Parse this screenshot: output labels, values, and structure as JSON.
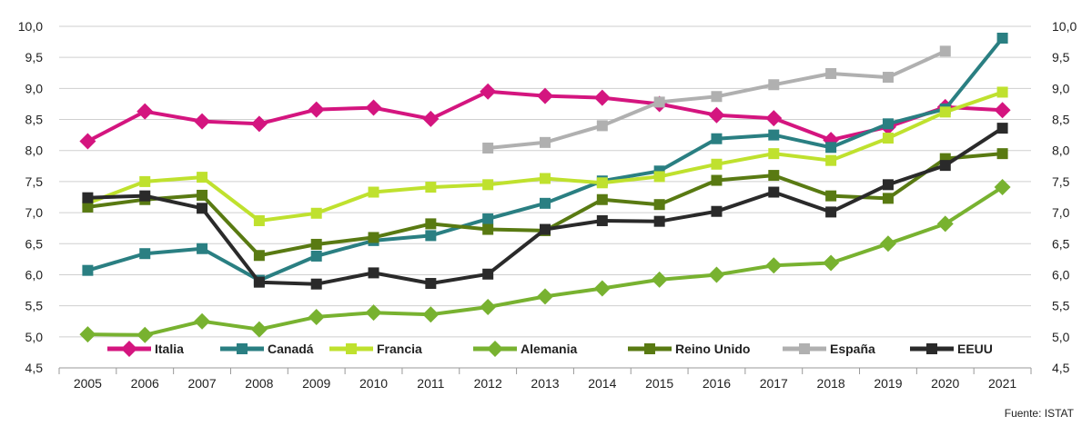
{
  "chart_data": {
    "type": "line",
    "x": [
      "2005",
      "2006",
      "2007",
      "2008",
      "2009",
      "2010",
      "2011",
      "2012",
      "2013",
      "2014",
      "2015",
      "2016",
      "2017",
      "2018",
      "2019",
      "2020",
      "2021"
    ],
    "ylim": [
      4.5,
      10.0
    ],
    "yticks": [
      "4,5",
      "5,0",
      "5,5",
      "6,0",
      "6,5",
      "7,0",
      "7,5",
      "8,0",
      "8,5",
      "9,0",
      "9,5",
      "10,0"
    ],
    "grid": true,
    "legend_position": "bottom-inside",
    "series": [
      {
        "name": "Italia",
        "color": "#D4157F",
        "marker": "diamond",
        "values": [
          8.15,
          8.63,
          8.47,
          8.43,
          8.66,
          8.69,
          8.51,
          8.95,
          8.88,
          8.85,
          8.75,
          8.57,
          8.52,
          8.17,
          8.38,
          8.7,
          8.65
        ]
      },
      {
        "name": "Canadá",
        "color": "#2A7F82",
        "marker": "square",
        "values": [
          6.07,
          6.34,
          6.42,
          5.91,
          6.3,
          6.55,
          6.63,
          6.9,
          7.15,
          7.51,
          7.67,
          8.19,
          8.25,
          8.05,
          8.43,
          8.67,
          9.81
        ]
      },
      {
        "name": "Francia",
        "color": "#BFE12E",
        "marker": "square",
        "values": [
          7.15,
          7.5,
          7.57,
          6.87,
          6.99,
          7.33,
          7.41,
          7.45,
          7.55,
          7.48,
          7.58,
          7.78,
          7.95,
          7.84,
          8.2,
          8.62,
          8.94
        ]
      },
      {
        "name": "Alemania",
        "color": "#78B230",
        "marker": "diamond",
        "values": [
          5.04,
          5.03,
          5.25,
          5.12,
          5.32,
          5.39,
          5.36,
          5.48,
          5.65,
          5.78,
          5.92,
          6.0,
          6.15,
          6.19,
          6.5,
          6.82,
          7.41
        ]
      },
      {
        "name": "Reino Unido",
        "color": "#597A12",
        "marker": "square",
        "values": [
          7.09,
          7.21,
          7.28,
          6.31,
          6.49,
          6.6,
          6.82,
          6.73,
          6.71,
          7.21,
          7.13,
          7.52,
          7.6,
          7.27,
          7.23,
          7.87,
          7.95
        ]
      },
      {
        "name": "España",
        "color": "#B0B0B0",
        "marker": "square",
        "values": [
          null,
          null,
          null,
          null,
          null,
          null,
          null,
          8.04,
          8.13,
          8.4,
          8.78,
          8.87,
          9.06,
          9.24,
          9.18,
          9.6,
          null
        ]
      },
      {
        "name": "EEUU",
        "color": "#2A2A2A",
        "marker": "square",
        "values": [
          7.24,
          7.27,
          7.07,
          5.88,
          5.85,
          6.03,
          5.86,
          6.01,
          6.73,
          6.87,
          6.86,
          7.02,
          7.33,
          7.01,
          7.45,
          7.76,
          8.36
        ]
      }
    ]
  },
  "source": "Fuente: ISTAT"
}
